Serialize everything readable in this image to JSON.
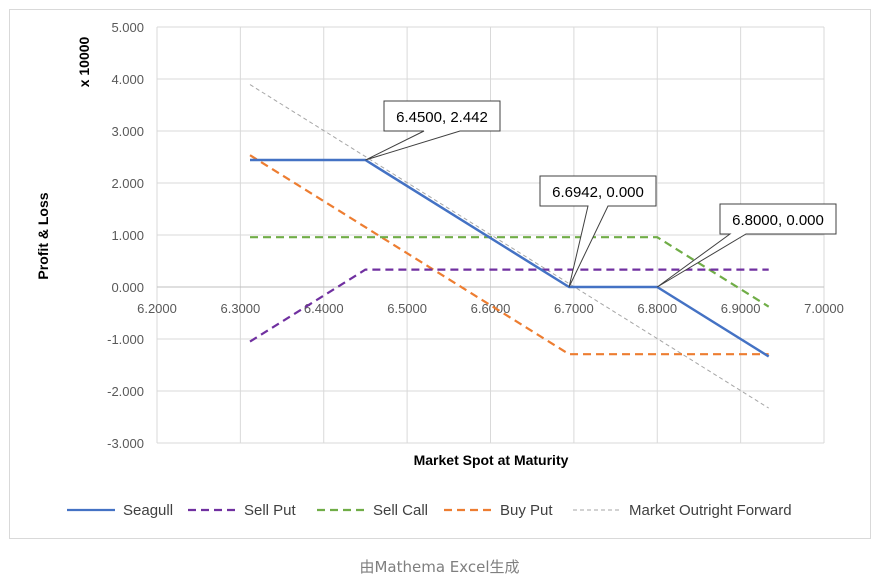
{
  "caption": "由Mathema Excel生成",
  "chart_data": {
    "type": "line",
    "title": "",
    "xlabel": "Market Spot at Maturity",
    "ylabel": "Profit & Loss",
    "y_multiplier_label": "x 10000",
    "xlim": [
      6.2,
      7.0
    ],
    "ylim": [
      -3.0,
      5.0
    ],
    "x_ticks": [
      "6.2000",
      "6.3000",
      "6.4000",
      "6.5000",
      "6.6000",
      "6.7000",
      "6.8000",
      "6.9000",
      "7.0000"
    ],
    "y_ticks": [
      "5.000",
      "4.000",
      "3.000",
      "2.000",
      "1.000",
      "0.000",
      "-1.000",
      "-2.000",
      "-3.000"
    ],
    "grid": true,
    "legend_position": "bottom",
    "series": [
      {
        "name": "Seagull",
        "color": "#4472c4",
        "dash": "solid",
        "x": [
          6.3116,
          6.45,
          6.6942,
          6.8,
          6.9337
        ],
        "y": [
          2.442,
          2.442,
          0.0,
          0.0,
          -1.337
        ]
      },
      {
        "name": "Sell Put",
        "color": "#7030a0",
        "dash": "dashed",
        "x": [
          6.3116,
          6.45,
          6.9337
        ],
        "y": [
          -1.05,
          0.334,
          0.334
        ]
      },
      {
        "name": "Sell Call",
        "color": "#70ad47",
        "dash": "dashed",
        "x": [
          6.3116,
          6.8,
          6.9337
        ],
        "y": [
          0.958,
          0.958,
          -0.379
        ]
      },
      {
        "name": "Buy Put",
        "color": "#ed7d31",
        "dash": "dashed",
        "x": [
          6.3116,
          6.6942,
          6.9337
        ],
        "y": [
          2.534,
          -1.292,
          -1.292
        ]
      },
      {
        "name": "Market Outright Forward",
        "color": "#a6a6a6",
        "dash": "dotted",
        "x": [
          6.3116,
          6.9337
        ],
        "y": [
          3.893,
          -2.328
        ]
      }
    ],
    "annotations": [
      {
        "text": "6.4500, 2.442",
        "x": 6.45,
        "y": 2.442
      },
      {
        "text": "6.6942, 0.000",
        "x": 6.6942,
        "y": 0.0
      },
      {
        "text": "6.8000, 0.000",
        "x": 6.8,
        "y": 0.0
      }
    ]
  }
}
